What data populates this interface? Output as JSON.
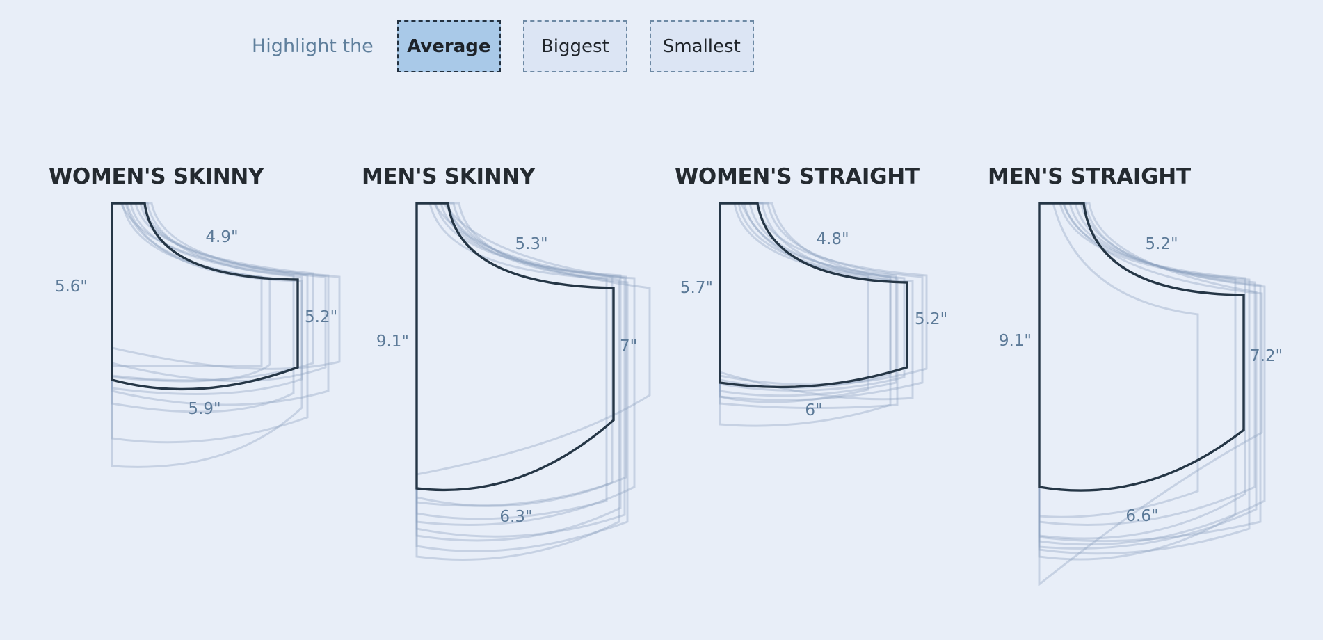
{
  "controls": {
    "lead_text": "Highlight the",
    "buttons": [
      {
        "label": "Average",
        "active": true
      },
      {
        "label": "Biggest",
        "active": false
      },
      {
        "label": "Smallest",
        "active": false
      }
    ]
  },
  "pockets": [
    {
      "title": "WOMEN'S SKINNY",
      "height": "5.6\"",
      "top": "4.9\"",
      "side": "5.2\"",
      "bottom": "5.9\""
    },
    {
      "title": "MEN'S SKINNY",
      "height": "9.1\"",
      "top": "5.3\"",
      "side": "7\"",
      "bottom": "6.3\""
    },
    {
      "title": "WOMEN'S STRAIGHT",
      "height": "5.7\"",
      "top": "4.8\"",
      "side": "5.2\"",
      "bottom": "6\""
    },
    {
      "title": "MEN'S STRAIGHT",
      "height": "9.1\"",
      "top": "5.2\"",
      "side": "7.2\"",
      "bottom": "6.6\""
    }
  ],
  "colors": {
    "background": "#e8eef8",
    "highlight_stroke": "#253646",
    "faint_stroke": "#8ea4bf",
    "active_button": "#a9c9e8",
    "label": "#5c7a98"
  }
}
